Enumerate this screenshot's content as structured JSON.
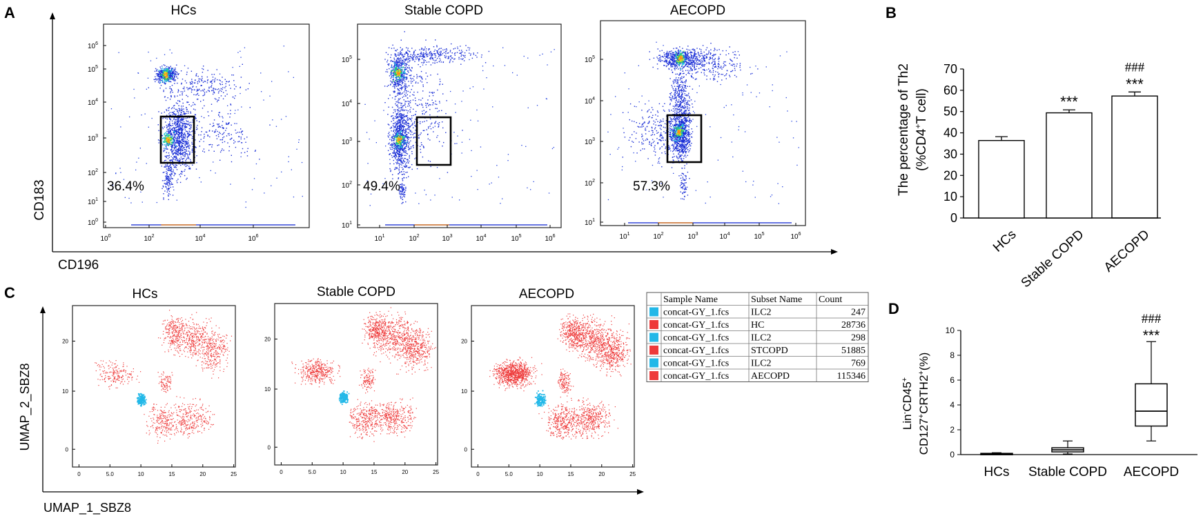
{
  "panels": {
    "A": {
      "letter": "A",
      "y_axis_label": "CD183",
      "x_axis_label": "CD196",
      "plots": [
        {
          "title": "HCs",
          "gate_percent": "36.4%",
          "y_ticks": [
            {
              "b": "10",
              "e": "0"
            },
            {
              "b": "10",
              "e": "1"
            },
            {
              "b": "10",
              "e": "2"
            },
            {
              "b": "10",
              "e": "3"
            },
            {
              "b": "10",
              "e": "4"
            },
            {
              "b": "10",
              "e": "5"
            },
            {
              "b": "10",
              "e": "6"
            }
          ],
          "x_ticks": [
            {
              "b": "10",
              "e": "0"
            },
            {
              "b": "10",
              "e": "2"
            },
            {
              "b": "10",
              "e": "4"
            },
            {
              "b": "10",
              "e": "6"
            }
          ]
        },
        {
          "title": "Stable COPD",
          "gate_percent": "49.4%",
          "y_ticks": [
            {
              "b": "10",
              "e": "1"
            },
            {
              "b": "10",
              "e": "2"
            },
            {
              "b": "10",
              "e": "3"
            },
            {
              "b": "10",
              "e": "4"
            },
            {
              "b": "10",
              "e": "5"
            }
          ],
          "x_ticks": [
            {
              "b": "10",
              "e": "1"
            },
            {
              "b": "10",
              "e": "2"
            },
            {
              "b": "10",
              "e": "3"
            },
            {
              "b": "10",
              "e": "4"
            },
            {
              "b": "10",
              "e": "5"
            },
            {
              "b": "10",
              "e": "6"
            }
          ]
        },
        {
          "title": "AECOPD",
          "gate_percent": "57.3%",
          "y_ticks": [
            {
              "b": "10",
              "e": "1"
            },
            {
              "b": "10",
              "e": "2"
            },
            {
              "b": "10",
              "e": "3"
            },
            {
              "b": "10",
              "e": "4"
            },
            {
              "b": "10",
              "e": "5"
            }
          ],
          "x_ticks": [
            {
              "b": "10",
              "e": "1"
            },
            {
              "b": "10",
              "e": "2"
            },
            {
              "b": "10",
              "e": "3"
            },
            {
              "b": "10",
              "e": "4"
            },
            {
              "b": "10",
              "e": "5"
            },
            {
              "b": "10",
              "e": "6"
            }
          ]
        }
      ]
    },
    "B": {
      "letter": "B",
      "ylabel_line1": "The percentage of Th2",
      "ylabel_line2_pre": "(%CD4",
      "ylabel_line2_sup": "+",
      "ylabel_line2_post": "T cell)",
      "annotations": [
        {
          "category": "Stable COPD",
          "lines": [
            "***"
          ]
        },
        {
          "category": "AECOPD",
          "lines": [
            "###",
            "***"
          ]
        }
      ]
    },
    "C": {
      "letter": "C",
      "y_axis_label": "UMAP_2_SBZ8",
      "x_axis_label": "UMAP_1_SBZ8",
      "plots": [
        {
          "title": "HCs"
        },
        {
          "title": "Stable COPD"
        },
        {
          "title": "AECOPD"
        }
      ],
      "y_ticks": [
        "0",
        "10",
        "20"
      ],
      "x_ticks": [
        "0",
        "5.0",
        "10",
        "15",
        "20",
        "25"
      ],
      "table": {
        "headers": [
          "Sample Name",
          "Subset Name",
          "Count"
        ],
        "rows": [
          {
            "color": "#22b8e8",
            "sample": "concat-GY_1.fcs",
            "subset": "ILC2",
            "count": "247"
          },
          {
            "color": "#ee3a3a",
            "sample": "concat-GY_1.fcs",
            "subset": "HC",
            "count": "28736"
          },
          {
            "color": "#22b8e8",
            "sample": "concat-GY_1.fcs",
            "subset": "ILC2",
            "count": "298"
          },
          {
            "color": "#ee3a3a",
            "sample": "concat-GY_1.fcs",
            "subset": "STCOPD",
            "count": "51885"
          },
          {
            "color": "#22b8e8",
            "sample": "concat-GY_1.fcs",
            "subset": "ILC2",
            "count": "769"
          },
          {
            "color": "#ee3a3a",
            "sample": "concat-GY_1.fcs",
            "subset": "AECOPD",
            "count": "115346"
          }
        ]
      }
    },
    "D": {
      "letter": "D",
      "ylabel_line1_pre": "Lin",
      "ylabel_line1_sup1": "-",
      "ylabel_line1_mid": "CD45",
      "ylabel_line1_sup2": "+",
      "ylabel_line2_pre": "CD127",
      "ylabel_line2_sup1": "+",
      "ylabel_line2_mid": "CRTH2",
      "ylabel_line2_sup2": "+",
      "ylabel_line2_post": "(%)",
      "annotations": [
        {
          "category": "AECOPD",
          "lines": [
            "###",
            "***"
          ]
        }
      ]
    }
  },
  "colors": {
    "ilc2": "#22b8e8",
    "cluster": "#ee3a3a",
    "axis": "#000000"
  },
  "chart_data": [
    {
      "type": "bar",
      "panel": "B",
      "categories": [
        "HCs",
        "Stable COPD",
        "AECOPD"
      ],
      "values": [
        36.4,
        49.4,
        57.3
      ],
      "errors": [
        1.8,
        1.4,
        1.9
      ],
      "ylim": [
        0,
        70
      ],
      "yticks": [
        0,
        10,
        20,
        30,
        40,
        50,
        60,
        70
      ],
      "xlabel": "",
      "ylabel": "The percentage of Th2 (%CD4+T cell)"
    },
    {
      "type": "box",
      "panel": "D",
      "categories": [
        "HCs",
        "Stable COPD",
        "AECOPD"
      ],
      "boxes": [
        {
          "min": 0.0,
          "q1": 0.02,
          "median": 0.06,
          "q3": 0.1,
          "max": 0.15
        },
        {
          "min": 0.05,
          "q1": 0.22,
          "median": 0.38,
          "q3": 0.55,
          "max": 1.1
        },
        {
          "min": 1.1,
          "q1": 2.3,
          "median": 3.5,
          "q3": 5.7,
          "max": 9.1
        }
      ],
      "ylim": [
        0,
        10
      ],
      "yticks": [
        0,
        2,
        4,
        6,
        8,
        10
      ],
      "xlabel": "",
      "ylabel": "Lin-CD45+ CD127+CRTH2+(%)"
    }
  ]
}
